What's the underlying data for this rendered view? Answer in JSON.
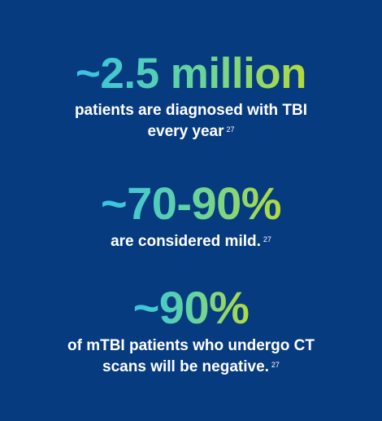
{
  "stats": [
    {
      "headline": "~2.5 million",
      "text_line1": "patients are diagnosed with TBI",
      "text_line2": "every year",
      "ref": "27"
    },
    {
      "headline": "~70-90%",
      "text_line1": "are considered mild.",
      "ref": "27"
    },
    {
      "headline": "~90%",
      "text_line1": "of mTBI patients who undergo CT",
      "text_line2": "scans will be negative.",
      "ref": "27"
    }
  ],
  "colors": {
    "background": "#073b80",
    "gradient_start": "#35c3e6",
    "gradient_mid": "#63d3a3",
    "gradient_end": "#b5db3a",
    "text": "#ffffff"
  }
}
